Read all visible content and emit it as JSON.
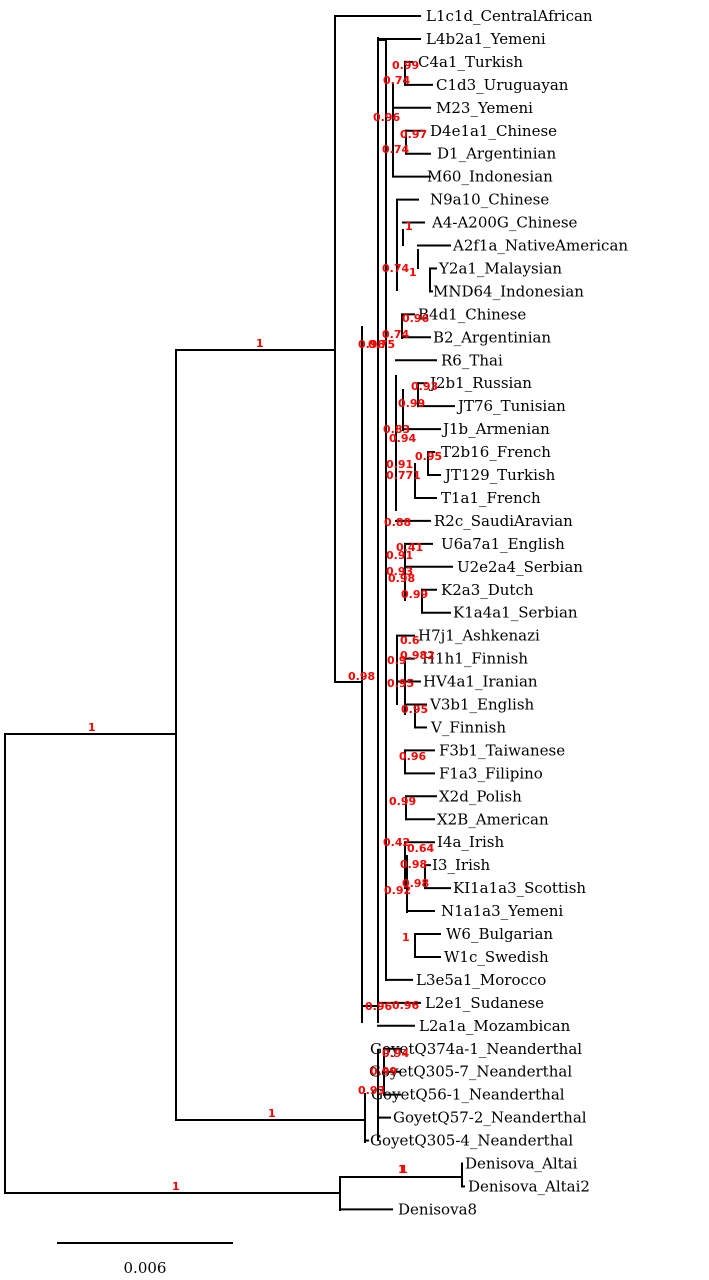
{
  "tree": {
    "leaves": [
      "L1c1d_CentralAfrican",
      "L4b2a1_Yemeni",
      "C4a1_Turkish",
      "C1d3_Uruguayan",
      "M23_Yemeni",
      "D4e1a1_Chinese",
      "D1_Argentinian",
      "M60_Indonesian",
      "N9a10_Chinese",
      "A4-A200G_Chinese",
      "A2f1a_NativeAmerican",
      "Y2a1_Malaysian",
      "MND64_Indonesian",
      "B4d1_Chinese",
      "B2_Argentinian",
      "R6_Thai",
      "J2b1_Russian",
      "JT76_Tunisian",
      "J1b_Armenian",
      "T2b16_French",
      "JT129_Turkish",
      "T1a1_French",
      "R2c_SaudiAravian",
      "U6a7a1_English",
      "U2e2a4_Serbian",
      "K2a3_Dutch",
      "K1a4a1_Serbian",
      "H7j1_Ashkenazi",
      "H1h1_Finnish",
      "HV4a1_Iranian",
      "V3b1_English",
      "V_Finnish",
      "F3b1_Taiwanese",
      "F1a3_Filipino",
      "X2d_Polish",
      "X2B_American",
      "I4a_Irish",
      "I3_Irish",
      "KI1a1a3_Scottish",
      "N1a1a3_Yemeni",
      "W6_Bulgarian",
      "W1c_Swedish",
      "L3e5a1_Morocco",
      "L2e1_Sudanese",
      "L2a1a_Mozambican",
      "GoyetQ374a-1_Neanderthal",
      "GoyetQ305-7_Neanderthal",
      "GoyetQ56-1_Neanderthal",
      "GoyetQ57-2_Neanderthal",
      "GoyetQ305-4_Neanderthal",
      "Denisova_Altai",
      "Denisova_Altai2",
      "Denisova8"
    ],
    "support_values": [
      "1",
      "1",
      "1",
      "1",
      "1",
      "0.98",
      "0.96",
      "0.99",
      "0.74",
      "0.96",
      "0.97",
      "0.74",
      "1",
      "0.74",
      "1",
      "0.96",
      "0.74",
      "0.98",
      "0.75",
      "0.93",
      "0.99",
      "0.83",
      "0.94",
      "0.95",
      "0.91",
      "0.771",
      "0.88",
      "0.41",
      "0.91",
      "0.93",
      "0.98",
      "0.99",
      "0.6",
      "0.982",
      "0.9",
      "0.95",
      "0.95",
      "0.96",
      "0.99",
      "0.42",
      "0.64",
      "0.98",
      "0.98",
      "0.92",
      "1",
      "0.96",
      "0.94",
      "0.99",
      "0.93",
      "1"
    ]
  },
  "scale_bar": {
    "label": "0.006"
  },
  "colors": {
    "branch": "#000000",
    "support": "#ff0000",
    "leaf_text": "#000000"
  }
}
